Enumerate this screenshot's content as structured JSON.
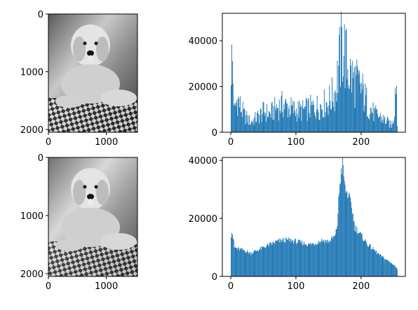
{
  "chart_data": [
    {
      "type": "image",
      "description_tag": "grayscale photo of a curly-haired dog",
      "xticks": [
        "0",
        "1000"
      ],
      "yticks": [
        "0",
        "1000",
        "2000"
      ],
      "xlim": [
        0,
        1536
      ],
      "ylim": [
        2048,
        0
      ]
    },
    {
      "type": "bar",
      "xlim": [
        -13,
        268
      ],
      "ylim": [
        0,
        52000
      ],
      "xticks": [
        "0",
        "100",
        "200"
      ],
      "yticks": [
        "0",
        "20000",
        "40000"
      ],
      "color": "#1f77b4",
      "key_points": [
        [
          0,
          31500
        ],
        [
          2,
          29000
        ],
        [
          5,
          9000
        ],
        [
          10,
          15000
        ],
        [
          15,
          10500
        ],
        [
          20,
          7500
        ],
        [
          30,
          4500
        ],
        [
          40,
          6500
        ],
        [
          50,
          9000
        ],
        [
          60,
          8000
        ],
        [
          70,
          11000
        ],
        [
          80,
          12000
        ],
        [
          90,
          10500
        ],
        [
          100,
          9500
        ],
        [
          110,
          9500
        ],
        [
          120,
          10500
        ],
        [
          130,
          11000
        ],
        [
          140,
          12000
        ],
        [
          150,
          13500
        ],
        [
          160,
          18000
        ],
        [
          165,
          28000
        ],
        [
          168,
          33000
        ],
        [
          170,
          36500
        ],
        [
          172,
          38000
        ],
        [
          175,
          34000
        ],
        [
          178,
          29000
        ],
        [
          185,
          24000
        ],
        [
          190,
          22500
        ],
        [
          200,
          19000
        ],
        [
          210,
          12000
        ],
        [
          220,
          8000
        ],
        [
          230,
          6500
        ],
        [
          240,
          4500
        ],
        [
          246,
          3000
        ],
        [
          250,
          7000
        ],
        [
          252,
          19000
        ],
        [
          253,
          24000
        ],
        [
          254,
          21000
        ],
        [
          255,
          3000
        ]
      ]
    },
    {
      "type": "image",
      "description_tag": "grayscale photo of a curly-haired dog, equalized",
      "xticks": [
        "0",
        "1000"
      ],
      "yticks": [
        "0",
        "1000",
        "2000"
      ],
      "xlim": [
        0,
        1536
      ],
      "ylim": [
        2048,
        0
      ]
    },
    {
      "type": "bar",
      "xlim": [
        -13,
        268
      ],
      "ylim": [
        0,
        41000
      ],
      "xticks": [
        "0",
        "100",
        "200"
      ],
      "yticks": [
        "0",
        "20000",
        "40000"
      ],
      "color": "#1f77b4",
      "key_points": [
        [
          0,
          14500
        ],
        [
          1,
          16000
        ],
        [
          3,
          13500
        ],
        [
          5,
          10000
        ],
        [
          10,
          9500
        ],
        [
          20,
          9000
        ],
        [
          30,
          8000
        ],
        [
          40,
          9000
        ],
        [
          50,
          10000
        ],
        [
          60,
          11000
        ],
        [
          70,
          12000
        ],
        [
          80,
          12500
        ],
        [
          90,
          12500
        ],
        [
          100,
          12000
        ],
        [
          110,
          11500
        ],
        [
          120,
          11000
        ],
        [
          130,
          11500
        ],
        [
          140,
          12500
        ],
        [
          150,
          12000
        ],
        [
          160,
          14000
        ],
        [
          163,
          18000
        ],
        [
          165,
          26000
        ],
        [
          167,
          32000
        ],
        [
          169,
          36000
        ],
        [
          171,
          38500
        ],
        [
          173,
          35000
        ],
        [
          175,
          30000
        ],
        [
          180,
          28000
        ],
        [
          185,
          24000
        ],
        [
          190,
          17000
        ],
        [
          200,
          14000
        ],
        [
          210,
          11000
        ],
        [
          220,
          9000
        ],
        [
          230,
          7000
        ],
        [
          240,
          5500
        ],
        [
          250,
          4000
        ],
        [
          255,
          2500
        ]
      ]
    }
  ]
}
